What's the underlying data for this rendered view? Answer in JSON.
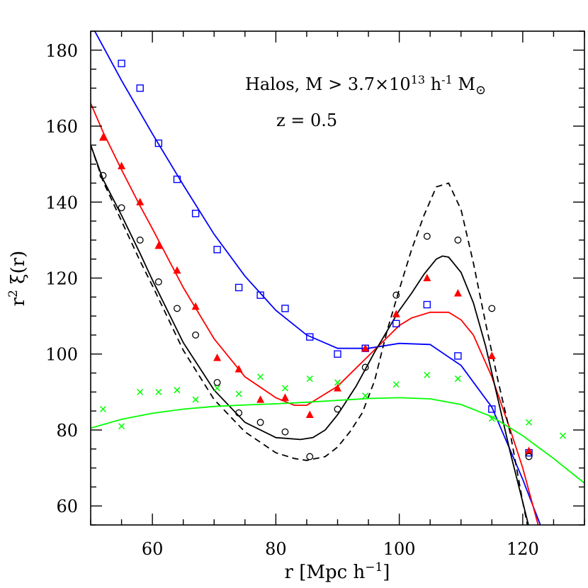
{
  "chart_data": {
    "type": "line",
    "xlabel_main": "r [Mpc h",
    "xlabel_sup": "−1",
    "xlabel_end": "]",
    "ylabel_main": "r",
    "ylabel_sup": "2",
    "ylabel_end": " ξ(r)",
    "xlim": [
      50,
      130
    ],
    "ylim": [
      55,
      185
    ],
    "xticks": [
      60,
      80,
      100,
      120
    ],
    "yticks": [
      60,
      80,
      100,
      120,
      140,
      160,
      180
    ],
    "annotations": {
      "line1_a": "Halos, M > 3.7×10",
      "line1_sup13": "13",
      "line1_b": " h",
      "line1_sup": "-1",
      "line1_c": " M",
      "line1_sun": "⊙",
      "line2": "z = 0.5"
    },
    "colors": {
      "blue": "#0000ff",
      "red": "#ff0000",
      "black": "#000000",
      "green": "#00ff00"
    },
    "series": [
      {
        "color": "blue",
        "style": "solid",
        "x": [
          50,
          55,
          60,
          65,
          70,
          75,
          80,
          85,
          90,
          95,
          100,
          105,
          110,
          115,
          120,
          125
        ],
        "y": [
          187,
          172,
          158,
          144.5,
          131.5,
          120.5,
          111.5,
          105,
          101.5,
          101.5,
          102.8,
          102.5,
          97,
          86,
          67,
          46
        ]
      },
      {
        "color": "red",
        "style": "solid",
        "x": [
          50,
          52,
          55,
          58,
          60,
          65,
          70,
          75,
          80,
          83,
          85,
          90,
          95,
          100,
          102,
          105,
          108,
          110,
          112,
          115,
          118,
          120,
          123
        ],
        "y": [
          166,
          158.5,
          148.5,
          139,
          133,
          117.5,
          104,
          94,
          88.5,
          86.5,
          86.5,
          91.5,
          99.5,
          107.5,
          109.5,
          111,
          111,
          109,
          105,
          94,
          80,
          70,
          52
        ]
      },
      {
        "color": "black",
        "style": "solid",
        "x": [
          50,
          52,
          55,
          58,
          60,
          65,
          70,
          75,
          80,
          84,
          86,
          88,
          90,
          93,
          96,
          98,
          100,
          102,
          104,
          106,
          107,
          108,
          110,
          112,
          114,
          116,
          118,
          120,
          122,
          124
        ],
        "y": [
          155,
          146,
          136.5,
          126.5,
          119.5,
          103,
          90.5,
          82,
          78,
          77.5,
          78,
          80,
          84,
          91.5,
          100.5,
          106,
          111.5,
          116,
          121,
          125,
          125.8,
          125.5,
          121.5,
          113.5,
          102,
          88,
          74,
          61,
          48,
          45
        ]
      },
      {
        "color": "black",
        "style": "dashed",
        "x": [
          50,
          52,
          55,
          58,
          60,
          65,
          70,
          75,
          80,
          83,
          85,
          88,
          90,
          92,
          94,
          96,
          98,
          100,
          102,
          104,
          106,
          107,
          108,
          110,
          112,
          114,
          116,
          118,
          120,
          122
        ],
        "y": [
          155,
          145.5,
          135,
          124.5,
          118,
          101,
          88,
          79.5,
          74,
          72.5,
          72,
          73,
          75.5,
          79.5,
          84.5,
          93,
          106,
          117,
          127.5,
          136.5,
          144,
          144.5,
          145,
          138,
          124,
          108,
          93,
          79,
          61,
          45
        ]
      },
      {
        "color": "green",
        "style": "solid",
        "x": [
          50,
          55,
          60,
          65,
          70,
          75,
          80,
          85,
          90,
          95,
          100,
          105,
          110,
          115,
          120,
          125,
          130
        ],
        "y": [
          80.5,
          82.8,
          84.4,
          85.5,
          86.2,
          86.6,
          86.9,
          87.3,
          87.8,
          88.3,
          88.5,
          88.2,
          86.7,
          83.5,
          78.5,
          72.5,
          66
        ]
      }
    ],
    "markers": [
      {
        "color": "blue",
        "shape": "square",
        "x": [
          55,
          58,
          61,
          64,
          67,
          70.5,
          74,
          77.5,
          81.5,
          85.5,
          90,
          94.5,
          99.5,
          104.5,
          109.5,
          115,
          121
        ],
        "y": [
          176.5,
          170,
          155.5,
          146,
          137,
          127.5,
          117.5,
          115.5,
          112,
          104.5,
          100,
          101.5,
          108,
          113,
          99.5,
          85.5,
          74
        ]
      },
      {
        "color": "red",
        "shape": "triangle",
        "x": [
          52,
          55,
          58,
          61,
          64,
          67,
          70.5,
          74,
          77.5,
          81.5,
          85.5,
          90,
          94.5,
          99.5,
          104.5,
          109.5,
          115,
          121
        ],
        "y": [
          157,
          149.5,
          140,
          128.5,
          122,
          112.5,
          99,
          96,
          88,
          88.5,
          84,
          91,
          101.5,
          110.5,
          120,
          116,
          99.5,
          74.5
        ]
      },
      {
        "color": "black",
        "shape": "circle",
        "x": [
          52,
          55,
          58,
          61,
          64,
          67,
          70.5,
          74,
          77.5,
          81.5,
          85.5,
          90,
          94.5,
          99.5,
          104.5,
          109.5,
          115,
          121
        ],
        "y": [
          147,
          138.5,
          130,
          119,
          112,
          105,
          92.5,
          84.5,
          82,
          79.5,
          73,
          85.5,
          96.5,
          115.5,
          131,
          130,
          112,
          73
        ]
      },
      {
        "color": "green",
        "shape": "cross",
        "x": [
          52,
          55,
          58,
          61,
          64,
          67,
          70.5,
          74,
          77.5,
          81.5,
          85.5,
          90,
          94.5,
          99.5,
          104.5,
          109.5,
          115,
          121,
          126.5
        ],
        "y": [
          85.5,
          81,
          90,
          90,
          90.5,
          88,
          91,
          89.5,
          94,
          91,
          93.5,
          92.5,
          89,
          92,
          94.5,
          93.5,
          83,
          82,
          78.5
        ]
      }
    ]
  }
}
